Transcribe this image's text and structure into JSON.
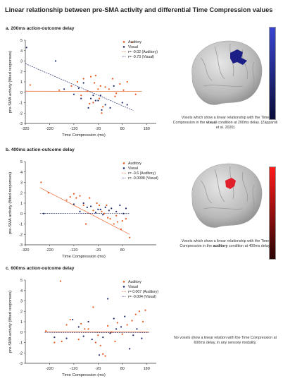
{
  "figure": {
    "title": "Linear relationship between pre-SMA activity and differential Time Compression values"
  },
  "panels": [
    {
      "label": "a. 200ms action-outcome delay",
      "description": {
        "pre": "Voxels which show a linear relationship with the Time Compression in the",
        "bold": "visual",
        "post": "condition at 200ms delay. (Zapparoli et al. 2020)"
      },
      "brain": {
        "activation_color": "#1c1f86"
      },
      "colorbar": {
        "top_color": "#3a45d0",
        "bottom_color": "#0a0c3a"
      }
    },
    {
      "label": "b. 400ms action-outcome delay",
      "description": {
        "pre": "Voxels which show a linear relationship with the Time Compression in the",
        "bold": "auditory",
        "post": "condition at 400ms delay."
      },
      "brain": {
        "activation_color": "#e0202a"
      },
      "colorbar": {
        "top_color": "#ff1a1a",
        "bottom_color": "#2a0404"
      }
    },
    {
      "label": "c. 600ms action-outcome delay",
      "description": {
        "pre": "No voxels show a linear relation with the Time Compression at 600ms delay, in any sensory modality.",
        "bold": "",
        "post": ""
      },
      "brain": null,
      "colorbar": null
    }
  ],
  "chart_data": [
    {
      "type": "scatter",
      "xlabel": "Time Compression (ms)",
      "ylabel": "pre-SMA activity (fitted responses)",
      "xlim": [
        -320,
        220
      ],
      "ylim": [
        -3,
        5
      ],
      "xticks": [
        -320,
        -220,
        -120,
        -20,
        80,
        180
      ],
      "yticks": [
        -3,
        -2,
        -1,
        0,
        1,
        2,
        3,
        4,
        5
      ],
      "colors": {
        "auditory": "#e8581c",
        "visual": "#1f2a6b"
      },
      "legend": [
        "Auditory",
        "Visual"
      ],
      "fit_labels": [
        "r= -0.02 (Auditory)",
        "r= -0.73 (Visual)"
      ],
      "series": [
        {
          "name": "Auditory",
          "points": [
            [
              -300,
              0.7
            ],
            [
              -180,
              0.2
            ],
            [
              -130,
              0.6
            ],
            [
              -105,
              1.0
            ],
            [
              -90,
              -0.3
            ],
            [
              -80,
              1.3
            ],
            [
              -65,
              0.1
            ],
            [
              -55,
              -1.1
            ],
            [
              -50,
              1.5
            ],
            [
              -40,
              -1.0
            ],
            [
              -35,
              0.9
            ],
            [
              -30,
              1.6
            ],
            [
              -20,
              0.3
            ],
            [
              -15,
              -0.6
            ],
            [
              -10,
              0.6
            ],
            [
              -5,
              -2.0
            ],
            [
              0,
              -1.4
            ],
            [
              10,
              0.5
            ],
            [
              25,
              0.3
            ],
            [
              40,
              1.3
            ],
            [
              50,
              -0.4
            ],
            [
              55,
              -0.1
            ],
            [
              70,
              0.8
            ],
            [
              85,
              0.2
            ],
            [
              100,
              1.0
            ],
            [
              120,
              4.8
            ],
            [
              135,
              -0.2
            ]
          ]
        },
        {
          "name": "Visual",
          "points": [
            [
              -315,
              4.3
            ],
            [
              -195,
              3.0
            ],
            [
              -160,
              0.3
            ],
            [
              -120,
              -0.2
            ],
            [
              -100,
              0.4
            ],
            [
              -90,
              -0.6
            ],
            [
              -80,
              0.9
            ],
            [
              -60,
              -1.5
            ],
            [
              -50,
              -0.6
            ],
            [
              -40,
              -0.3
            ],
            [
              -30,
              -0.8
            ],
            [
              -20,
              -0.8
            ],
            [
              -10,
              -0.3
            ],
            [
              -5,
              -1.7
            ],
            [
              10,
              -1.2
            ],
            [
              30,
              -1.5
            ],
            [
              45,
              0.6
            ],
            [
              80,
              -1.0
            ],
            [
              100,
              -1.2
            ]
          ]
        }
      ],
      "fits": [
        {
          "name": "Auditory",
          "x": [
            -320,
            160
          ],
          "y": [
            0.1,
            0.08
          ]
        },
        {
          "name": "Visual",
          "x": [
            -320,
            125
          ],
          "y": [
            2.75,
            -1.75
          ]
        }
      ]
    },
    {
      "type": "scatter",
      "xlabel": "Time Compression (ms)",
      "ylabel": "pre-SMA activity (fitted responses)",
      "xlim": [
        -320,
        220
      ],
      "ylim": [
        -3,
        5
      ],
      "xticks": [
        -320,
        -220,
        -120,
        -20,
        80
      ],
      "yticks": [
        -3,
        -2,
        -1,
        0,
        1,
        2,
        3,
        4,
        5
      ],
      "colors": {
        "auditory": "#e8581c",
        "visual": "#1f2a6b"
      },
      "legend": [
        "Auditory",
        "Visual"
      ],
      "fit_labels": [
        "r= -0.6 (Auditory)",
        "r= -0.0008 (Visual)"
      ],
      "series": [
        {
          "name": "Auditory",
          "points": [
            [
              -255,
              3.0
            ],
            [
              -225,
              2.0
            ],
            [
              -150,
              1.3
            ],
            [
              -135,
              1.6
            ],
            [
              -120,
              1.9
            ],
            [
              -110,
              1.5
            ],
            [
              -95,
              1.7
            ],
            [
              -80,
              0.8
            ],
            [
              -70,
              -1.0
            ],
            [
              -55,
              1.5
            ],
            [
              -40,
              0.3
            ],
            [
              -25,
              1.0
            ],
            [
              -15,
              0.8
            ],
            [
              -5,
              0.2
            ],
            [
              5,
              0.0
            ],
            [
              15,
              0.8
            ],
            [
              20,
              -0.4
            ],
            [
              30,
              -0.5
            ],
            [
              45,
              -1.0
            ],
            [
              55,
              -0.2
            ],
            [
              60,
              -0.8
            ],
            [
              75,
              -1.5
            ],
            [
              80,
              -0.7
            ],
            [
              95,
              -0.5
            ],
            [
              110,
              -2.3
            ]
          ]
        },
        {
          "name": "Visual",
          "points": [
            [
              -245,
              0.0
            ],
            [
              -120,
              0.9
            ],
            [
              -95,
              0.2
            ],
            [
              -80,
              1.0
            ],
            [
              -65,
              0.6
            ],
            [
              -50,
              0.7
            ],
            [
              -30,
              0.1
            ],
            [
              -20,
              0.4
            ],
            [
              -10,
              0.4
            ],
            [
              0,
              -0.1
            ],
            [
              10,
              0.6
            ],
            [
              25,
              0.3
            ],
            [
              35,
              0.5
            ],
            [
              55,
              0.2
            ],
            [
              70,
              0.8
            ],
            [
              85,
              0.0
            ],
            [
              95,
              0.5
            ]
          ]
        }
      ],
      "fits": [
        {
          "name": "Auditory",
          "x": [
            -260,
            110
          ],
          "y": [
            2.5,
            -2.0
          ]
        },
        {
          "name": "Visual",
          "x": [
            -260,
            110
          ],
          "y": [
            0.02,
            0.0
          ]
        }
      ]
    },
    {
      "type": "scatter",
      "xlabel": "Time Compression (ms)",
      "ylabel": "pre-SMA activity (fitted responses)",
      "xlim": [
        -320,
        220
      ],
      "ylim": [
        -3,
        5
      ],
      "xticks": [
        -220,
        -120,
        -20,
        80,
        180
      ],
      "yticks": [
        -3,
        -2,
        -1,
        0,
        1,
        2,
        3,
        4,
        5
      ],
      "colors": {
        "auditory": "#e8581c",
        "visual": "#1f2a6b"
      },
      "legend": [
        "Auditory",
        "Visual"
      ],
      "fit_labels": [
        "r= 0.007 (Auditory)",
        "r= -0.004 (Visual)"
      ],
      "series": [
        {
          "name": "Auditory",
          "points": [
            [
              -235,
              0.1
            ],
            [
              -200,
              -1.0
            ],
            [
              -175,
              4.9
            ],
            [
              -170,
              -0.9
            ],
            [
              -150,
              0.7
            ],
            [
              -135,
              1.2
            ],
            [
              -100,
              -0.7
            ],
            [
              -90,
              0.8
            ],
            [
              -75,
              0.3
            ],
            [
              -60,
              0.3
            ],
            [
              -40,
              2.4
            ],
            [
              -30,
              -1.0
            ],
            [
              -20,
              -0.3
            ],
            [
              -10,
              -1.3
            ],
            [
              0,
              -2.1
            ],
            [
              10,
              -2.3
            ],
            [
              20,
              0.6
            ],
            [
              35,
              0.0
            ],
            [
              50,
              -0.9
            ],
            [
              60,
              0.9
            ],
            [
              80,
              -0.2
            ],
            [
              100,
              0.7
            ],
            [
              120,
              1.1
            ],
            [
              135,
              1.7
            ],
            [
              150,
              2.0
            ],
            [
              165,
              1.0
            ],
            [
              175,
              2.1
            ]
          ]
        },
        {
          "name": "Visual",
          "points": [
            [
              -200,
              -0.5
            ],
            [
              -150,
              -0.6
            ],
            [
              -125,
              1.2
            ],
            [
              -100,
              0.5
            ],
            [
              -80,
              -0.4
            ],
            [
              -60,
              1.0
            ],
            [
              -45,
              -0.7
            ],
            [
              -15,
              -2.2
            ],
            [
              0,
              -0.5
            ],
            [
              20,
              3.2
            ],
            [
              30,
              -0.1
            ],
            [
              45,
              1.3
            ],
            [
              55,
              0.3
            ],
            [
              75,
              0.5
            ],
            [
              90,
              1.5
            ],
            [
              110,
              -1.6
            ],
            [
              125,
              -0.3
            ],
            [
              140,
              0.3
            ],
            [
              160,
              -0.6
            ]
          ]
        }
      ],
      "fits": [
        {
          "name": "Auditory",
          "x": [
            -240,
            190
          ],
          "y": [
            0.02,
            0.03
          ]
        },
        {
          "name": "Visual",
          "x": [
            -240,
            190
          ],
          "y": [
            -0.03,
            -0.05
          ]
        }
      ]
    }
  ]
}
